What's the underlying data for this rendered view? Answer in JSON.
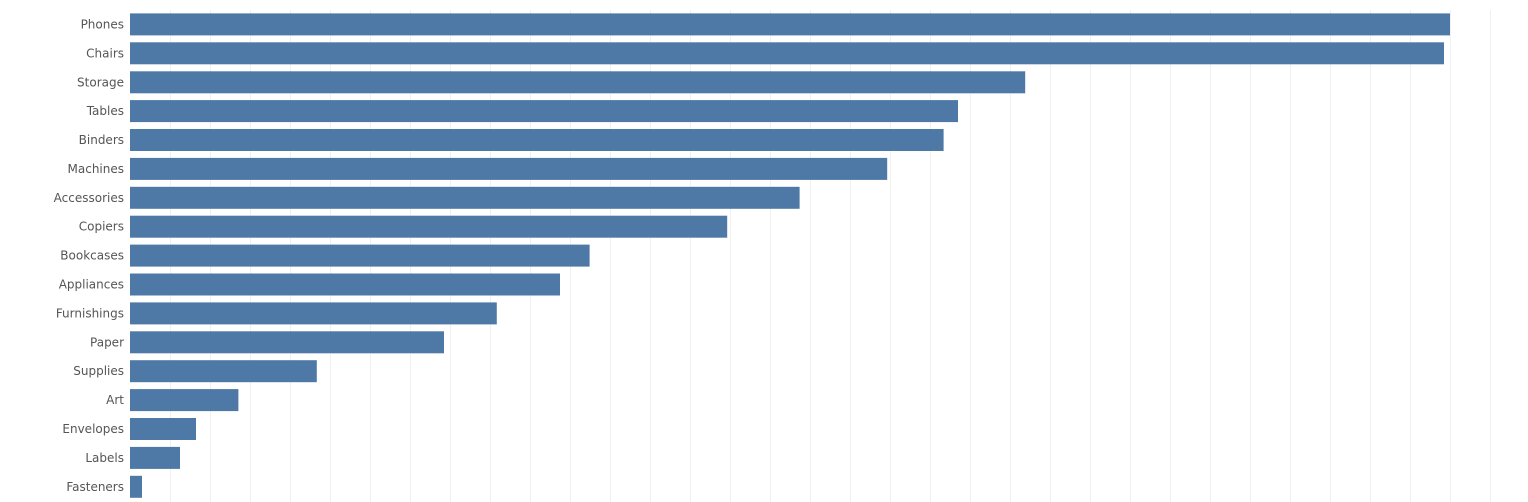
{
  "chart_data": {
    "type": "bar",
    "orientation": "horizontal",
    "title": "",
    "xlabel": "",
    "ylabel": "",
    "categories": [
      "Phones",
      "Chairs",
      "Storage",
      "Tables",
      "Binders",
      "Machines",
      "Accessories",
      "Copiers",
      "Bookcases",
      "Appliances",
      "Furnishings",
      "Paper",
      "Supplies",
      "Art",
      "Envelopes",
      "Labels",
      "Fasteners"
    ],
    "values": [
      330000,
      328500,
      223800,
      207000,
      203400,
      189300,
      167400,
      149300,
      114900,
      107500,
      91700,
      78500,
      46700,
      27100,
      16500,
      12500,
      3000
    ],
    "xlim": [
      0,
      342000
    ],
    "x_gridline_step": 10000,
    "grid": "vertical gridlines",
    "legend": "none",
    "colors": {
      "bar": "#4e79a7",
      "label": "#555555",
      "grid": "#f0f0f0"
    }
  }
}
